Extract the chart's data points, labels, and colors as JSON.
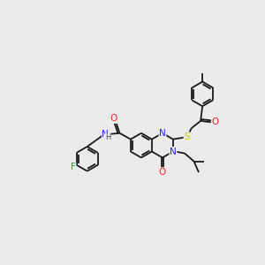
{
  "bg_color": "#ebebeb",
  "bond_color": "#1a1a1a",
  "atom_colors": {
    "N": "#2020ff",
    "O": "#ff2020",
    "S": "#cccc00",
    "F": "#20aa20",
    "H": "#444444",
    "C": "#1a1a1a"
  },
  "figsize": [
    3.0,
    3.0
  ],
  "dpi": 100
}
